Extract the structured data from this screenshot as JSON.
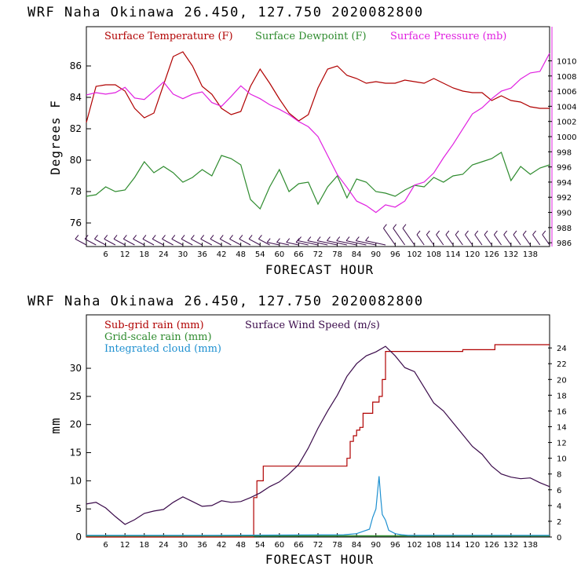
{
  "colors": {
    "temperature": "#b00000",
    "dewpoint": "#2e8b2e",
    "pressure": "#e020e0",
    "subgrid": "#b00000",
    "gridscale": "#2e8b2e",
    "cloud": "#1e90d0",
    "wind": "#3a0a4a",
    "barb": "#3a0a4a"
  },
  "chart_data": [
    {
      "type": "line",
      "title": "WRF   Naha Okinawa   26.450, 127.750   2020082800",
      "xlabel": "FORECAST HOUR",
      "ylabel": "Degrees F",
      "y2label": "mb",
      "xlim": [
        0,
        144
      ],
      "ylim": [
        74.5,
        88.5
      ],
      "y2lim": [
        985.5,
        1014.5
      ],
      "xticks": [
        6,
        12,
        18,
        24,
        30,
        36,
        42,
        48,
        54,
        60,
        66,
        72,
        78,
        84,
        90,
        96,
        102,
        108,
        114,
        120,
        126,
        132,
        138
      ],
      "yticks": [
        76,
        78,
        80,
        82,
        84,
        86
      ],
      "y2ticks": [
        986,
        988,
        990,
        992,
        994,
        996,
        998,
        1000,
        1002,
        1004,
        1006,
        1008,
        1010
      ],
      "legend": [
        "Surface Temperature (F)",
        "Surface Dewpoint (F)",
        "Surface Pressure (mb)"
      ],
      "series": [
        {
          "name": "Surface Temperature (F)",
          "axis": "left",
          "x": [
            0,
            3,
            6,
            9,
            12,
            15,
            18,
            21,
            24,
            27,
            30,
            33,
            36,
            39,
            42,
            45,
            48,
            51,
            54,
            57,
            60,
            63,
            66,
            69,
            72,
            75,
            78,
            81,
            84,
            87,
            90,
            93,
            96,
            99,
            102,
            105,
            108,
            111,
            114,
            117,
            120,
            123,
            126,
            129,
            132,
            135,
            138,
            141,
            144
          ],
          "values": [
            82.4,
            84.7,
            84.8,
            84.8,
            84.4,
            83.3,
            82.7,
            83.0,
            84.8,
            86.6,
            86.9,
            86.0,
            84.7,
            84.2,
            83.3,
            82.9,
            83.1,
            84.7,
            85.8,
            84.9,
            83.9,
            83.0,
            82.5,
            82.9,
            84.6,
            85.8,
            86.0,
            85.4,
            85.2,
            84.9,
            85.0,
            84.9,
            84.9,
            85.1,
            85.0,
            84.9,
            85.2,
            84.9,
            84.6,
            84.4,
            84.3,
            84.3,
            83.8,
            84.1,
            83.8,
            83.7,
            83.4,
            83.3,
            83.3
          ]
        },
        {
          "name": "Surface Dewpoint (F)",
          "axis": "left",
          "x": [
            0,
            3,
            6,
            9,
            12,
            15,
            18,
            21,
            24,
            27,
            30,
            33,
            36,
            39,
            42,
            45,
            48,
            51,
            54,
            57,
            60,
            63,
            66,
            69,
            72,
            75,
            78,
            81,
            84,
            87,
            90,
            93,
            96,
            99,
            102,
            105,
            108,
            111,
            114,
            117,
            120,
            123,
            126,
            129,
            132,
            135,
            138,
            141,
            144
          ],
          "values": [
            77.7,
            77.8,
            78.3,
            78.0,
            78.1,
            78.9,
            79.9,
            79.2,
            79.6,
            79.2,
            78.6,
            78.9,
            79.4,
            79.0,
            80.3,
            80.1,
            79.7,
            77.5,
            76.9,
            78.3,
            79.4,
            78.0,
            78.5,
            78.6,
            77.2,
            78.3,
            79.0,
            77.6,
            78.8,
            78.6,
            78.0,
            77.9,
            77.7,
            78.1,
            78.4,
            78.3,
            78.9,
            78.6,
            79.0,
            79.1,
            79.7,
            79.9,
            80.1,
            80.5,
            78.7,
            79.6,
            79.1,
            79.5,
            79.7
          ]
        },
        {
          "name": "Surface Pressure (mb)",
          "axis": "right",
          "x": [
            0,
            3,
            6,
            9,
            12,
            15,
            18,
            21,
            24,
            27,
            30,
            33,
            36,
            39,
            42,
            45,
            48,
            51,
            54,
            57,
            60,
            63,
            66,
            69,
            72,
            75,
            78,
            81,
            84,
            87,
            90,
            93,
            96,
            99,
            102,
            105,
            108,
            111,
            114,
            117,
            120,
            123,
            126,
            129,
            132,
            135,
            138,
            141,
            144
          ],
          "values": [
            1005.5,
            1005.8,
            1005.6,
            1005.8,
            1006.5,
            1005.1,
            1004.9,
            1006.0,
            1007.2,
            1005.6,
            1005.0,
            1005.6,
            1005.9,
            1004.5,
            1004.0,
            1005.3,
            1006.7,
            1005.6,
            1005.0,
            1004.2,
            1003.6,
            1002.9,
            1002.0,
            1001.3,
            1000.0,
            997.5,
            995.0,
            993.3,
            991.5,
            990.9,
            990.0,
            991.0,
            990.7,
            991.5,
            993.6,
            994.0,
            995.2,
            997.2,
            999.0,
            1001.0,
            1003.0,
            1003.8,
            1005.0,
            1006.0,
            1006.4,
            1007.6,
            1008.4,
            1008.6,
            1011.0
          ]
        }
      ],
      "wind_barb_hours": [
        0,
        3,
        6,
        9,
        12,
        15,
        18,
        21,
        24,
        27,
        30,
        33,
        36,
        39,
        42,
        45,
        48,
        51,
        54,
        57,
        60,
        63,
        66,
        69,
        72,
        75,
        78,
        81,
        84,
        87,
        90,
        93,
        96,
        99,
        102,
        105,
        108,
        111,
        114,
        117,
        120,
        123,
        126,
        129,
        132,
        135,
        138,
        141,
        144
      ]
    },
    {
      "type": "line",
      "title": "WRF   Naha Okinawa   26.450, 127.750   2020082800",
      "xlabel": "FORECAST HOUR",
      "ylabel": "mm",
      "xlim": [
        0,
        144
      ],
      "ylim": [
        0,
        39.5
      ],
      "y2lim": [
        0,
        28.2
      ],
      "xticks": [
        6,
        12,
        18,
        24,
        30,
        36,
        42,
        48,
        54,
        60,
        66,
        72,
        78,
        84,
        90,
        96,
        102,
        108,
        114,
        120,
        126,
        132,
        138
      ],
      "yticks": [
        0,
        5,
        10,
        15,
        20,
        25,
        30
      ],
      "y2ticks": [
        0,
        2,
        4,
        6,
        8,
        10,
        12,
        14,
        16,
        18,
        20,
        22,
        24
      ],
      "legend": [
        "Sub-grid rain (mm)",
        "Grid-scale rain (mm)",
        "Integrated cloud (mm)",
        "Surface Wind Speed (m/s)"
      ],
      "series": [
        {
          "name": "Sub-grid rain (mm)",
          "axis": "left",
          "step": true,
          "x": [
            0,
            50,
            52,
            53,
            54,
            55,
            80,
            81,
            82,
            83,
            84,
            85,
            86,
            89,
            91,
            92,
            93,
            96,
            99,
            116,
            117,
            126,
            127,
            144
          ],
          "values": [
            0,
            0,
            7,
            10,
            10,
            12.6,
            12.6,
            14,
            17,
            18,
            19,
            19.5,
            22,
            24,
            25,
            28,
            33,
            33,
            33,
            33,
            33.3,
            33.3,
            34.2,
            34.2
          ]
        },
        {
          "name": "Grid-scale rain (mm)",
          "axis": "left",
          "x": [
            0,
            144
          ],
          "values": [
            0.2,
            0.2
          ]
        },
        {
          "name": "Integrated cloud (mm)",
          "axis": "left",
          "x": [
            0,
            40,
            80,
            84,
            86,
            88,
            89,
            90,
            91,
            91.5,
            92,
            93,
            94,
            96,
            98,
            100,
            144
          ],
          "values": [
            0.3,
            0.3,
            0.4,
            0.6,
            1.0,
            1.4,
            3.5,
            5.0,
            10.8,
            7.0,
            4.0,
            3.0,
            1.2,
            0.6,
            0.4,
            0.3,
            0.3
          ]
        },
        {
          "name": "Surface Wind Speed (m/s)",
          "axis": "right",
          "x": [
            0,
            3,
            6,
            9,
            12,
            15,
            18,
            21,
            24,
            27,
            30,
            33,
            36,
            39,
            42,
            45,
            48,
            51,
            54,
            57,
            60,
            63,
            66,
            69,
            72,
            75,
            78,
            81,
            84,
            87,
            90,
            93,
            96,
            99,
            102,
            105,
            108,
            111,
            114,
            117,
            120,
            123,
            126,
            129,
            132,
            135,
            138,
            141,
            144
          ],
          "values": [
            4.2,
            4.4,
            3.7,
            2.6,
            1.6,
            2.2,
            3.0,
            3.3,
            3.5,
            4.4,
            5.1,
            4.5,
            3.9,
            4.0,
            4.6,
            4.4,
            4.5,
            5.0,
            5.6,
            6.4,
            7.0,
            8.0,
            9.2,
            11.3,
            13.8,
            16.0,
            18.0,
            20.4,
            22.0,
            23.0,
            23.5,
            24.2,
            23.0,
            21.5,
            21.0,
            19.0,
            17.0,
            16.0,
            14.5,
            13.0,
            11.5,
            10.5,
            9.0,
            8.0,
            7.6,
            7.4,
            7.5,
            6.9,
            6.4
          ]
        }
      ]
    }
  ]
}
